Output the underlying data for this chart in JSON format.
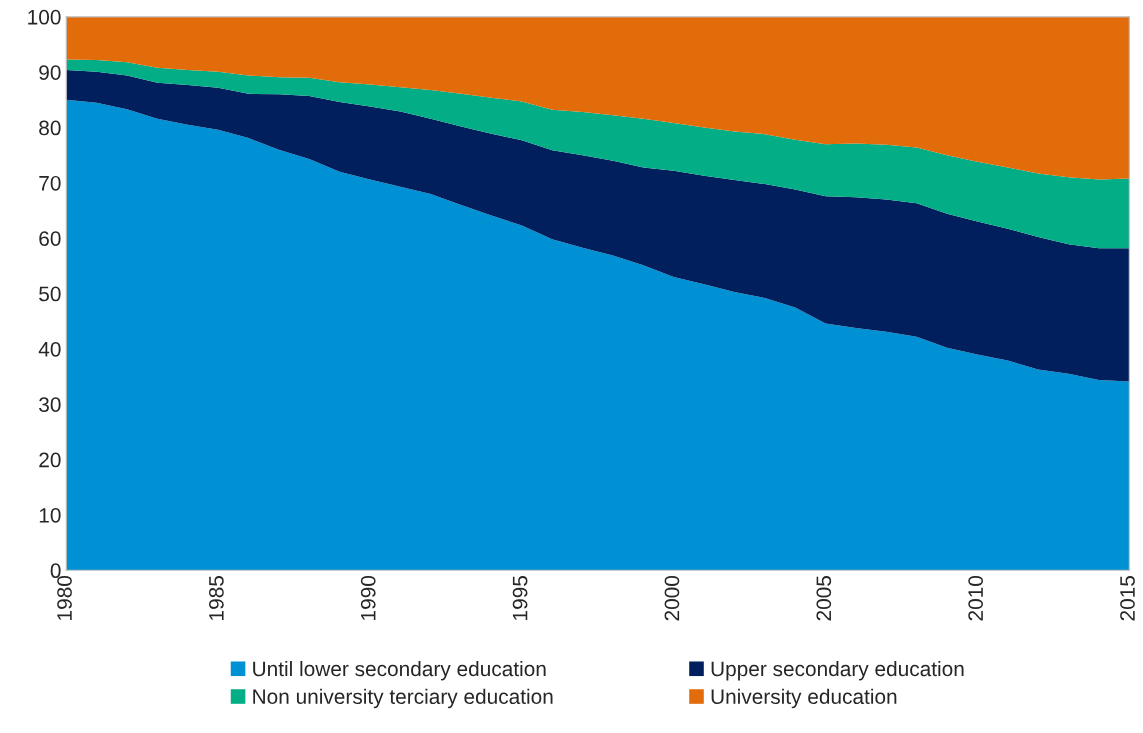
{
  "chart_data": {
    "type": "area",
    "stacked": true,
    "x": [
      1980,
      1981,
      1982,
      1983,
      1984,
      1985,
      1986,
      1987,
      1988,
      1989,
      1990,
      1991,
      1992,
      1993,
      1994,
      1995,
      1996,
      1997,
      1998,
      1999,
      2000,
      2001,
      2002,
      2003,
      2004,
      2005,
      2006,
      2007,
      2008,
      2009,
      2010,
      2011,
      2012,
      2013,
      2014,
      2015
    ],
    "series": [
      {
        "name": "Until lower secondary education",
        "color": "#0091d5",
        "values": [
          85,
          84.5,
          83.3,
          81.6,
          80.5,
          79.6,
          78.1,
          76,
          74.3,
          72,
          70.6,
          69.3,
          68,
          66,
          64.1,
          62.3,
          59.8,
          58.3,
          56.9,
          55.1,
          53,
          51.7,
          50.3,
          49.2,
          47.5,
          44.6,
          43.8,
          43.1,
          42.2,
          40.2,
          39,
          37.9,
          36.3,
          35.5,
          34.4,
          34.1
        ]
      },
      {
        "name": "Upper secondary education",
        "color": "#001f5c",
        "values": [
          5.4,
          5.6,
          6.1,
          6.5,
          7.2,
          7.6,
          8.0,
          10.0,
          11.4,
          12.6,
          13.2,
          13.6,
          13.6,
          14.2,
          14.8,
          15.4,
          16.1,
          16.7,
          17.1,
          17.7,
          19.2,
          19.6,
          20.2,
          20.6,
          21.3,
          23.0,
          23.6,
          23.9,
          24.1,
          24.2,
          24.0,
          23.8,
          23.9,
          23.4,
          23.8,
          24.1
        ]
      },
      {
        "name": "Non university terciary education",
        "color": "#03ad86",
        "values": [
          1.9,
          2.1,
          2.4,
          2.7,
          2.7,
          2.9,
          3.3,
          3.1,
          3.3,
          3.6,
          4.0,
          4.4,
          5.2,
          5.9,
          6.5,
          7.0,
          7.3,
          7.8,
          8.2,
          8.8,
          8.6,
          8.7,
          8.8,
          9.0,
          9.0,
          9.4,
          9.7,
          9.9,
          10.1,
          10.6,
          10.8,
          11.1,
          11.5,
          12.1,
          12.4,
          12.6
        ]
      },
      {
        "name": "University education",
        "color": "#e26b0a",
        "values": [
          7.7,
          7.8,
          8.2,
          9.2,
          9.6,
          9.9,
          10.6,
          10.9,
          11.0,
          11.8,
          12.2,
          12.7,
          13.2,
          13.9,
          14.6,
          15.3,
          16.8,
          17.2,
          17.8,
          18.4,
          19.2,
          20.0,
          20.7,
          21.2,
          22.2,
          23.0,
          22.9,
          23.1,
          23.6,
          25.0,
          26.2,
          27.2,
          28.3,
          29.0,
          29.4,
          29.2
        ]
      }
    ],
    "xlim": [
      1980,
      2015
    ],
    "xticks": [
      1980,
      1985,
      1990,
      1995,
      2000,
      2005,
      2010,
      2015
    ],
    "ylim": [
      0,
      100
    ],
    "yticks": [
      0,
      10,
      20,
      30,
      40,
      50,
      60,
      70,
      80,
      90,
      100
    ],
    "legend": "bottom"
  }
}
